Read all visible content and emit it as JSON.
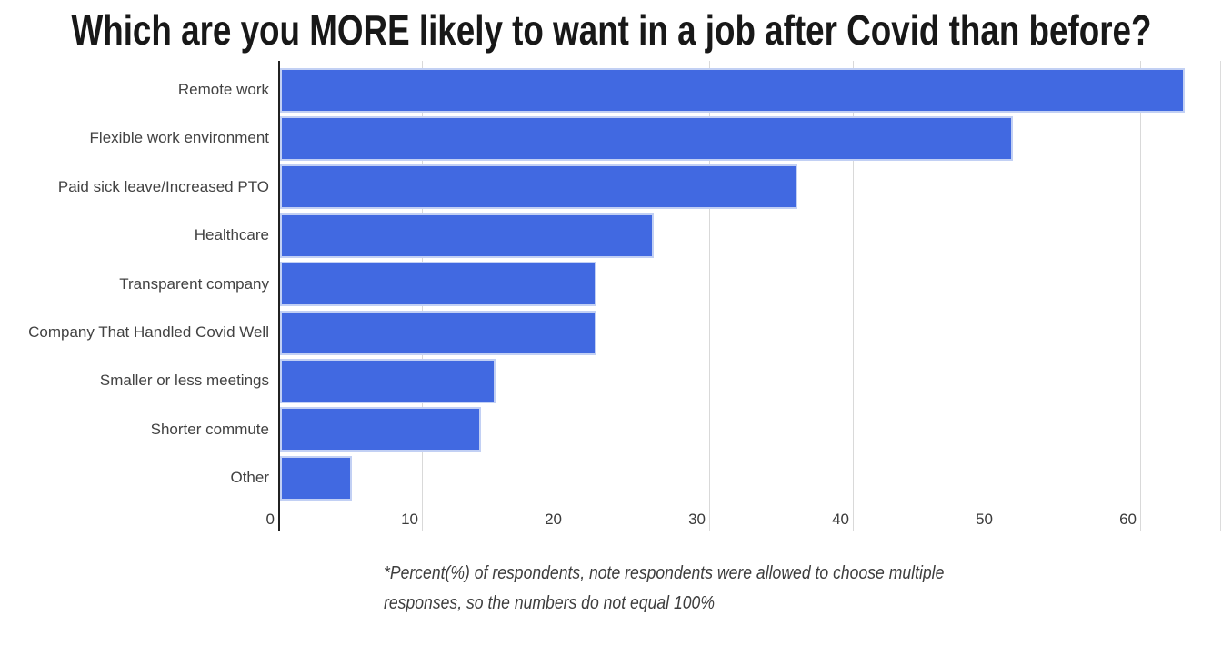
{
  "chart": {
    "title": "Which are you MORE likely to want in a job after Covid than before?"
  },
  "chart_data": {
    "type": "bar",
    "orientation": "horizontal",
    "title": "Which are you MORE likely to want in a job after Covid than before?",
    "categories": [
      "Remote work",
      "Flexible work environment",
      "Paid sick leave/Increased PTO",
      "Healthcare",
      "Transparent company",
      "Company That Handled Covid Well",
      "Smaller or less meetings",
      "Shorter commute",
      "Other"
    ],
    "values": [
      63,
      51,
      36,
      26,
      22,
      22,
      15,
      14,
      5
    ],
    "xlabel": "",
    "ylabel": "",
    "x_ticks": [
      "0",
      "10",
      "20",
      "30",
      "40",
      "50",
      "60"
    ],
    "x_tick_values": [
      0,
      10,
      20,
      30,
      40,
      50,
      60
    ],
    "xlim": [
      0,
      65.5
    ],
    "grid": "vertical-only",
    "legend": "none",
    "bar_color": "#4169E1",
    "bar_border_color": "#c2d0f4",
    "grid_color": "#d9d9d9",
    "axis_line_color": "#212121",
    "category_label_color": "#424242",
    "tick_label_color": "#3a3a3a",
    "title_color": "#181818",
    "background_color": "#ffffff"
  },
  "footnote": {
    "line1": "*Percent(%) of respondents, note respondents were allowed to choose multiple",
    "line2": "responses, so the numbers do not equal 100%"
  }
}
